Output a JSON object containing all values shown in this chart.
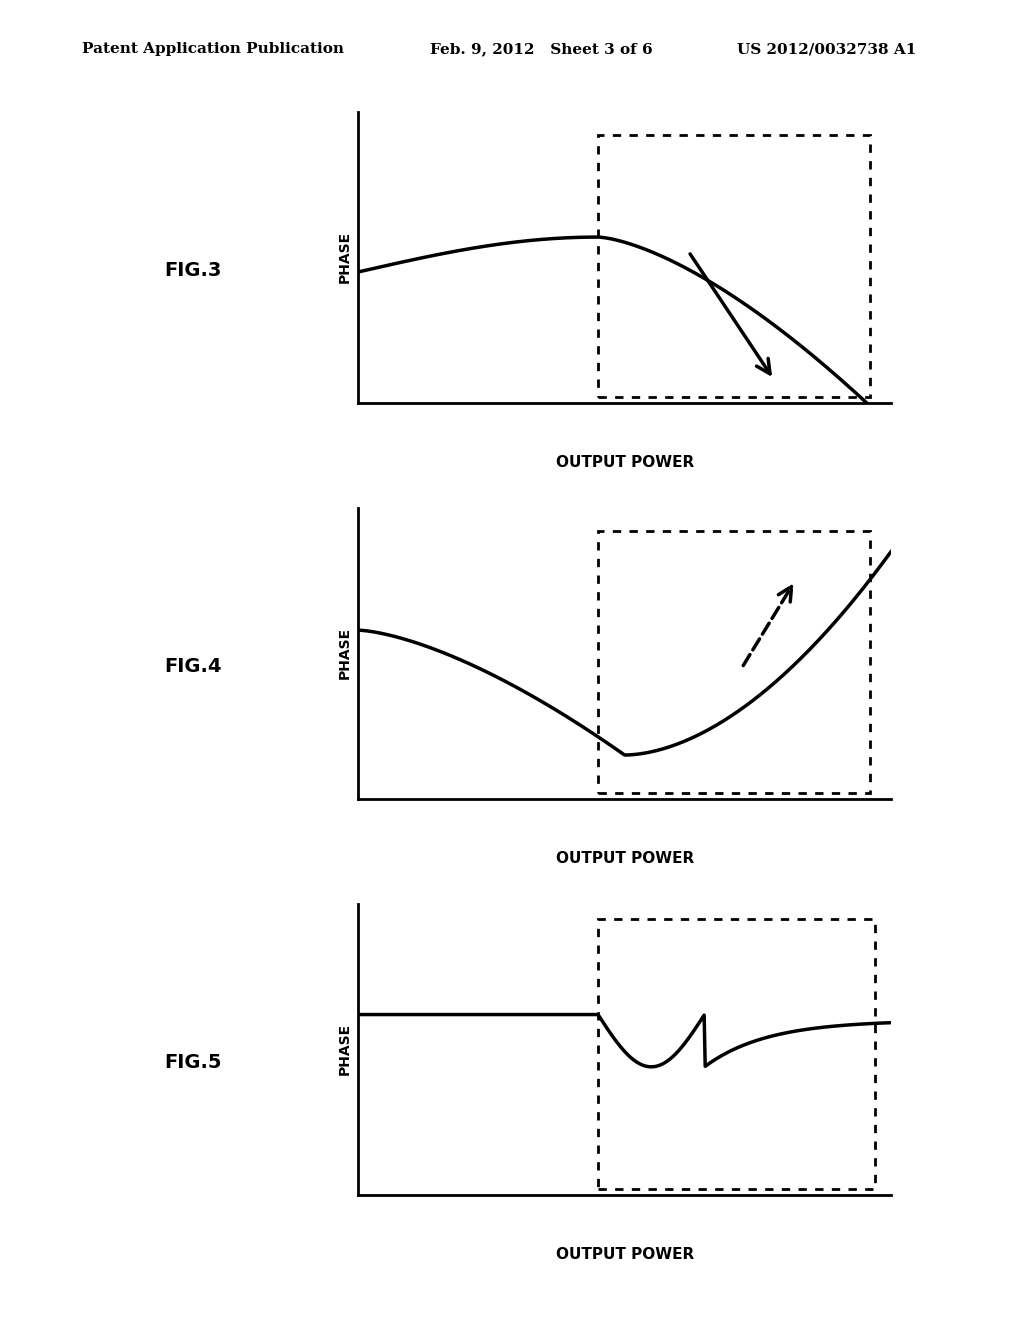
{
  "header_left": "Patent Application Publication",
  "header_mid": "Feb. 9, 2012   Sheet 3 of 6",
  "header_right": "US 2012/0032738 A1",
  "fig3_label": "FIG.3",
  "fig4_label": "FIG.4",
  "fig5_label": "FIG.5",
  "ylabel": "PHASE",
  "xlabel": "OUTPUT POWER",
  "bg_color": "#ffffff",
  "line_color": "#000000",
  "dashed_box_color": "#000000"
}
